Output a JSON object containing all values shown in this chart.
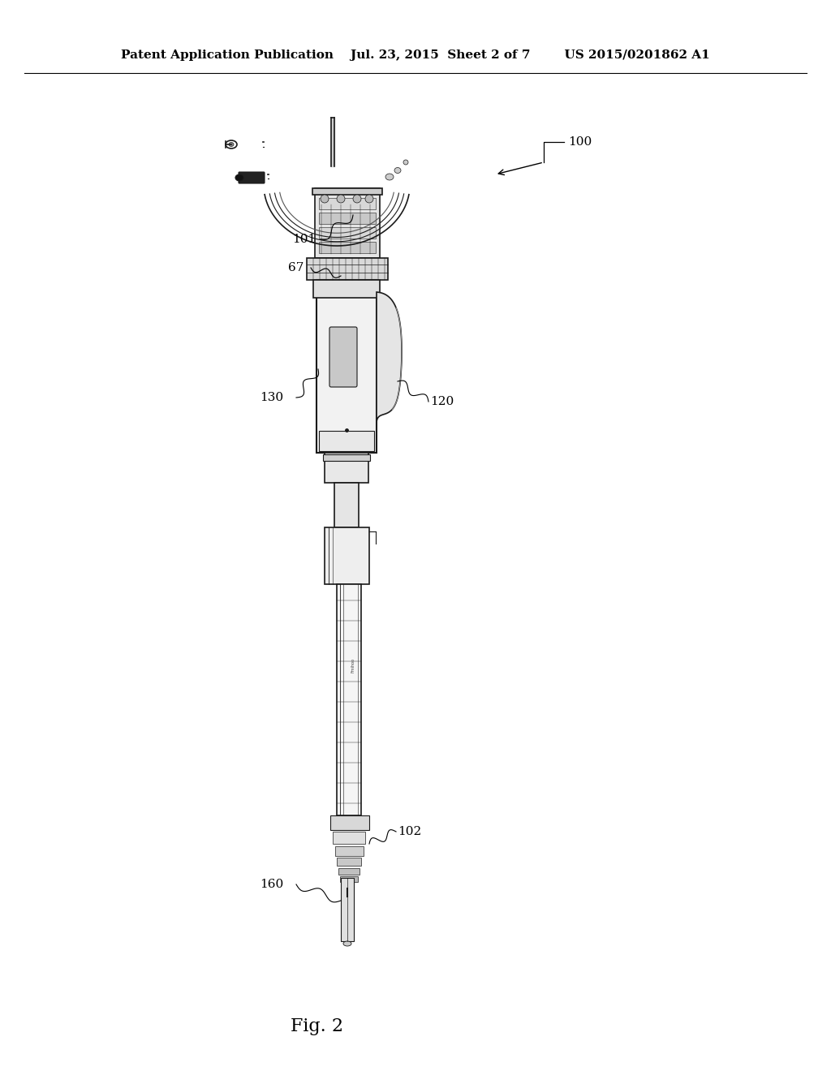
{
  "background_color": "#ffffff",
  "header_left": "Patent Application Publication",
  "header_mid": "Jul. 23, 2015  Sheet 2 of 7",
  "header_right": "US 2015/0201862 A1",
  "fig_label": "Fig. 2",
  "line_color": "#1a1a1a",
  "label_100": "100",
  "label_101": "101",
  "label_67": "67",
  "label_120": "120",
  "label_130": "130",
  "label_102": "102",
  "label_160": "160"
}
